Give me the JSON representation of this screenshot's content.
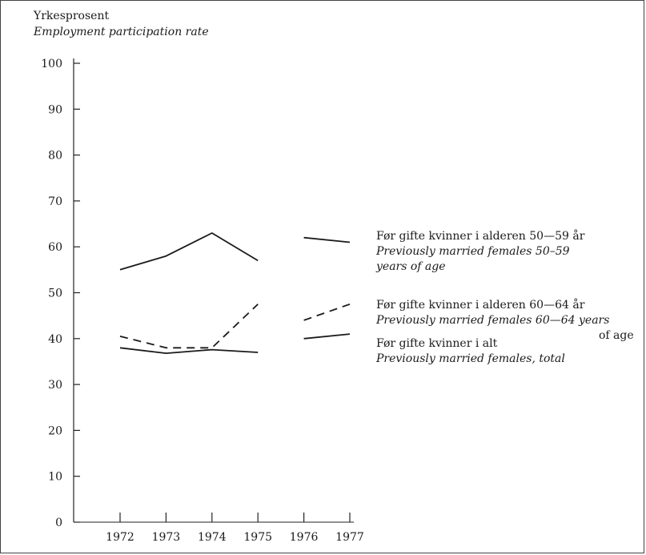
{
  "chart_data": {
    "type": "line",
    "ylabel": "Yrkesprosent",
    "ylabel_en": "Employment participation rate",
    "categories": [
      "1972",
      "1973",
      "1974",
      "1975",
      "1976",
      "1977"
    ],
    "yticks": [
      "0",
      "10",
      "20",
      "30",
      "40",
      "50",
      "60",
      "70",
      "80",
      "90",
      "100"
    ],
    "ylim": [
      0,
      100
    ],
    "series": [
      {
        "name": "Før gifte kvinner i alderen 50—59 år",
        "name_en": "Previously married females 50–59 years of age",
        "style": "solid",
        "segments": [
          [
            [
              "1972",
              55
            ],
            [
              "1973",
              58
            ],
            [
              "1974",
              63
            ],
            [
              "1975",
              57
            ]
          ],
          [
            [
              "1976",
              62
            ],
            [
              "1977",
              61
            ]
          ]
        ]
      },
      {
        "name": "Før gifte kvinner i alderen 60—64 år",
        "name_en": "Previously married females 60—64 years of age",
        "style": "dashed",
        "segments": [
          [
            [
              "1972",
              40.5
            ],
            [
              "1973",
              38
            ],
            [
              "1974",
              38
            ],
            [
              "1975",
              47.5
            ]
          ],
          [
            [
              "1976",
              44
            ],
            [
              "1977",
              47.5
            ]
          ]
        ]
      },
      {
        "name": "Før gifte kvinner i alt",
        "name_en": "Previously married females, total",
        "style": "solid",
        "segments": [
          [
            [
              "1972",
              38
            ],
            [
              "1973",
              36.8
            ],
            [
              "1974",
              37.6
            ],
            [
              "1975",
              37
            ]
          ],
          [
            [
              "1976",
              40
            ],
            [
              "1977",
              41
            ]
          ]
        ]
      }
    ],
    "legend": [
      {
        "line1": "Før gifte kvinner i alderen 50—59 år",
        "line2": "Previously married females 50–59",
        "line3": "years of age"
      },
      {
        "line1": "Før gifte kvinner i alderen 60—64 år",
        "line2": "Previously married females 60—64 years",
        "line3": "of age"
      },
      {
        "line1": "Før gifte kvinner i alt",
        "line2": "Previously married females, total"
      }
    ]
  }
}
